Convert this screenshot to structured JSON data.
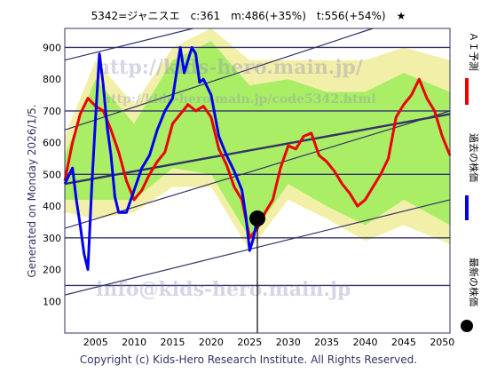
{
  "chart_data": {
    "type": "line",
    "title": "5342=ジャニスエ　c:361　m:486(+35%)　t:556(+54%)　★",
    "side_text": "Generated on Monday 2026/1/5.",
    "footer": "Copyright (c) Kids-Hero Research Institute. All Rights Reserved.",
    "watermarks": [
      "http://kids-hero.main.jp/",
      "http://kids-hero.main.jp/code5342.html",
      "info@kids-hero.main.jp"
    ],
    "legend": [
      "ＡＩ予測",
      "過去の株価",
      "最新の株価"
    ],
    "xlim": [
      2001,
      2051
    ],
    "ylim": [
      0,
      960
    ],
    "x_ticks": [
      2005,
      2010,
      2015,
      2020,
      2025,
      2030,
      2035,
      2040,
      2045,
      2050
    ],
    "y_ticks": [
      100,
      200,
      300,
      400,
      500,
      600,
      700,
      800,
      900
    ],
    "colors": {
      "prediction": "#ee0000",
      "history": "#0000ee",
      "latest": "#000000",
      "band_outer": "#f2f0a8",
      "band_inner": "#aaee66",
      "trend": "#333366",
      "frame": "#333366"
    },
    "latest_point": {
      "x": 2026.0,
      "y": 361
    },
    "horizontal_lines": [
      150,
      300,
      500,
      700,
      900
    ],
    "trend_lines": [
      {
        "x": [
          2001,
          2051
        ],
        "y": [
          120,
          420
        ]
      },
      {
        "x": [
          2001,
          2051
        ],
        "y": [
          330,
          700
        ]
      },
      {
        "x": [
          2001,
          2051
        ],
        "y": [
          470,
          690
        ]
      },
      {
        "x": [
          2001,
          2051
        ],
        "y": [
          640,
          1040
        ]
      },
      {
        "x": [
          2001,
          2051
        ],
        "y": [
          860,
          1160
        ]
      }
    ],
    "series": [
      {
        "name": "ＡＩ予測",
        "x": [
          2001,
          2002,
          2003,
          2004,
          2005,
          2006,
          2007,
          2008,
          2009,
          2010,
          2011,
          2012,
          2013,
          2014,
          2015,
          2016,
          2017,
          2018,
          2019,
          2020,
          2021,
          2022,
          2023,
          2024,
          2025,
          2026,
          2027,
          2028,
          2029,
          2030,
          2031,
          2032,
          2033,
          2034,
          2035,
          2036,
          2037,
          2038,
          2039,
          2040,
          2041,
          2042,
          2043,
          2044,
          2045,
          2046,
          2047,
          2048,
          2049,
          2050,
          2051
        ],
        "y": [
          480,
          600,
          690,
          740,
          715,
          700,
          640,
          570,
          480,
          420,
          450,
          500,
          540,
          570,
          660,
          690,
          720,
          700,
          715,
          680,
          580,
          530,
          460,
          420,
          300,
          330,
          380,
          420,
          520,
          590,
          580,
          620,
          630,
          560,
          540,
          510,
          470,
          440,
          400,
          420,
          460,
          500,
          550,
          680,
          720,
          750,
          800,
          740,
          700,
          620,
          560
        ]
      },
      {
        "name": "過去の株価",
        "x": [
          2001,
          2002,
          2002.5,
          2003,
          2003.5,
          2004,
          2004.5,
          2005,
          2005.5,
          2006,
          2006.5,
          2007,
          2007.5,
          2008,
          2009,
          2010,
          2011,
          2012,
          2013,
          2014,
          2015,
          2016,
          2016.5,
          2017,
          2017.5,
          2018,
          2018.5,
          2019,
          2020,
          2021,
          2022,
          2023,
          2024,
          2024.5,
          2025,
          2025.5,
          2026
        ],
        "y": [
          470,
          520,
          420,
          340,
          250,
          200,
          460,
          680,
          880,
          780,
          650,
          560,
          430,
          380,
          380,
          450,
          520,
          560,
          640,
          700,
          740,
          900,
          820,
          860,
          900,
          880,
          790,
          800,
          750,
          620,
          560,
          510,
          450,
          370,
          260,
          300,
          361
        ]
      }
    ],
    "band_outer": {
      "x": [
        2001,
        2005,
        2010,
        2015,
        2020,
        2025,
        2030,
        2035,
        2040,
        2045,
        2051
      ],
      "upper": [
        620,
        860,
        720,
        900,
        960,
        860,
        860,
        860,
        860,
        900,
        860
      ],
      "lower": [
        380,
        360,
        380,
        460,
        460,
        260,
        420,
        360,
        290,
        340,
        280
      ]
    },
    "band_inner": {
      "x": [
        2001,
        2005,
        2010,
        2015,
        2020,
        2025,
        2030,
        2035,
        2040,
        2045,
        2051
      ],
      "upper": [
        560,
        800,
        660,
        860,
        920,
        780,
        800,
        760,
        760,
        820,
        760
      ],
      "lower": [
        420,
        420,
        420,
        520,
        500,
        300,
        470,
        400,
        340,
        420,
        340
      ]
    }
  }
}
